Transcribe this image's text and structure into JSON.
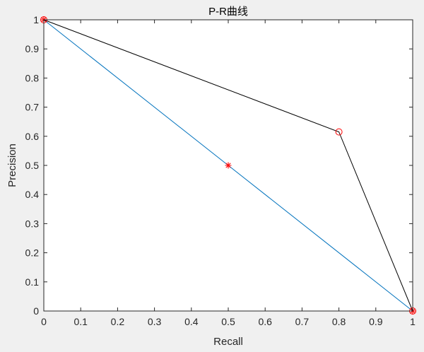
{
  "chart_data": {
    "type": "line",
    "title": "P-R曲线",
    "xlabel": "Recall",
    "ylabel": "Precision",
    "xlim": [
      0,
      1
    ],
    "ylim": [
      0,
      1
    ],
    "xticks": [
      "0",
      "0.1",
      "0.2",
      "0.3",
      "0.4",
      "0.5",
      "0.6",
      "0.7",
      "0.8",
      "0.9",
      "1"
    ],
    "yticks": [
      "0",
      "0.1",
      "0.2",
      "0.3",
      "0.4",
      "0.5",
      "0.6",
      "0.7",
      "0.8",
      "0.9",
      "1"
    ],
    "grid": false,
    "legend": "none",
    "series": [
      {
        "color": "#0072bd",
        "marker": "asterisk",
        "marker_color": "#ff0000",
        "x": [
          0,
          0.5,
          1
        ],
        "y": [
          1,
          0.5,
          0
        ]
      },
      {
        "color": "#000000",
        "marker": "circle",
        "marker_color": "#ff0000",
        "x": [
          0,
          0.8,
          1
        ],
        "y": [
          1,
          0.615,
          0
        ]
      }
    ]
  }
}
